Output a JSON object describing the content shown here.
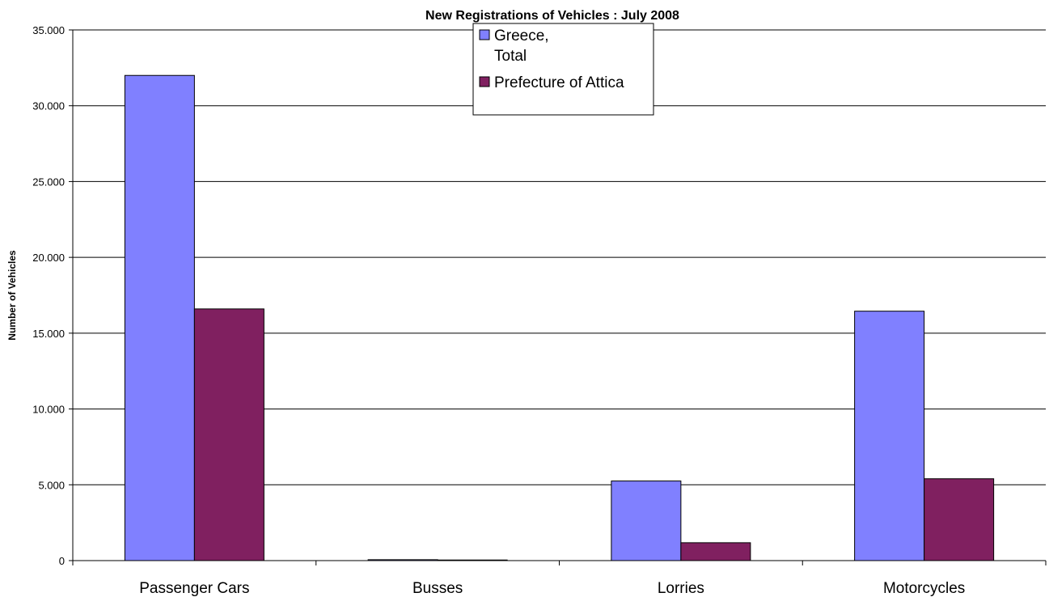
{
  "chart_data": {
    "type": "bar",
    "title": "New Registrations of Vehicles : July 2008",
    "xlabel": "",
    "ylabel": "Number of Vehicles",
    "categories": [
      "Passenger Cars",
      "Busses",
      "Lorries",
      "Motorcycles"
    ],
    "series": [
      {
        "name": "Greece, Total",
        "legend_lines": [
          "Greece,",
          "Total"
        ],
        "color": "#8080ff",
        "values": [
          32000,
          60,
          5250,
          16450
        ]
      },
      {
        "name": "Prefecture of Attica",
        "legend_lines": [
          "Prefecture of Attica"
        ],
        "color": "#802060",
        "values": [
          16600,
          40,
          1180,
          5400
        ]
      }
    ],
    "ylim": [
      0,
      35000
    ],
    "yticks": [
      0,
      5000,
      10000,
      15000,
      20000,
      25000,
      30000,
      35000
    ],
    "ytick_labels": [
      "0",
      "5.000",
      "10.000",
      "15.000",
      "20.000",
      "25.000",
      "30.000",
      "35.000"
    ],
    "grid": true,
    "legend_position": "top-center"
  }
}
